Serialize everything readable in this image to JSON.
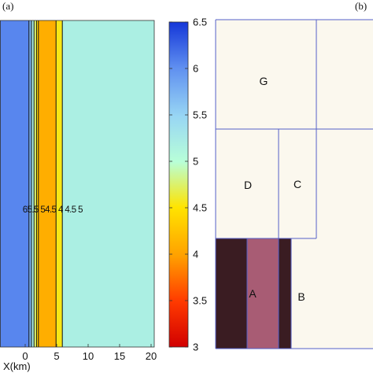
{
  "panel_a_label": "(a)",
  "panel_b_label": "(b)",
  "chart_data": [
    {
      "type": "heatmap",
      "panel": "(a)",
      "xlabel": "X(km)",
      "x_ticks": [
        0,
        5,
        10,
        15,
        20
      ],
      "xlim": [
        -4,
        20.5
      ],
      "colorbar": {
        "range": [
          3,
          6.5
        ],
        "ticks": [
          "3",
          "3.5",
          "4",
          "4.5",
          "5",
          "5.5",
          "6",
          "6.5"
        ]
      },
      "field_bands": [
        {
          "from": -4,
          "to": 0.6,
          "value": 6.05
        },
        {
          "from": 0.6,
          "to": 1.0,
          "value": 5.75
        },
        {
          "from": 1.0,
          "to": 1.4,
          "value": 5.25
        },
        {
          "from": 1.4,
          "to": 1.8,
          "value": 4.75
        },
        {
          "from": 1.8,
          "to": 2.1,
          "value": 4.4
        },
        {
          "from": 2.1,
          "to": 4.9,
          "value": 4.1
        },
        {
          "from": 4.9,
          "to": 5.9,
          "value": 4.55
        },
        {
          "from": 5.9,
          "to": 20.5,
          "value": 5.2
        }
      ],
      "contours": [
        {
          "x": 0.6,
          "label": "6"
        },
        {
          "x": 1.0,
          "label": "5.5"
        },
        {
          "x": 1.4,
          "label": "5"
        },
        {
          "x": 1.8,
          "label": "4.5"
        },
        {
          "x": 2.1,
          "label": "4.5"
        },
        {
          "x": 4.9,
          "label": "4"
        },
        {
          "x": 5.9,
          "label": "4.5"
        }
      ],
      "contour_label_text": "65.5 54.5 4 4.5 5"
    },
    {
      "type": "diagram",
      "panel": "(b)",
      "regions": [
        {
          "label": "G",
          "shade": "#fbf8ee"
        },
        {
          "label": "D",
          "shade": "#fbf8ee"
        },
        {
          "label": "C",
          "shade": "#fbf8ee"
        },
        {
          "label": "A",
          "shade": "#a85c74"
        },
        {
          "label": "B",
          "shade": "#fbf8ee"
        }
      ],
      "dark_strip_color": "#3a1c22",
      "divider_color": "#5560c8"
    }
  ]
}
